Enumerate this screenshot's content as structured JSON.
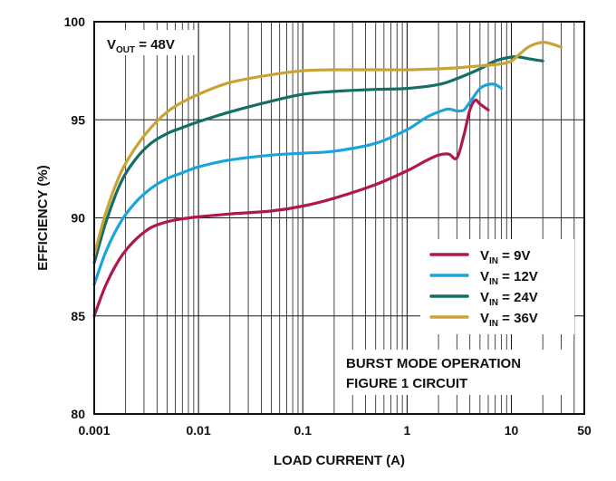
{
  "chart_data": {
    "type": "line",
    "title": "",
    "xlabel": "LOAD CURRENT (A)",
    "ylabel": "EFFICIENCY (%)",
    "x_scale": "log",
    "xlim": [
      0.001,
      50
    ],
    "ylim": [
      80,
      100
    ],
    "x_ticks": [
      0.001,
      0.01,
      0.1,
      1,
      10,
      50
    ],
    "x_tick_labels": [
      "0.001",
      "0.01",
      "0.1",
      "1",
      "10",
      "50"
    ],
    "y_ticks": [
      80,
      85,
      90,
      95,
      100
    ],
    "y_tick_labels": [
      "80",
      "85",
      "90",
      "95",
      "100"
    ],
    "grid": true,
    "legend_position": "bottom-right",
    "annotations": {
      "vout_main": "V",
      "vout_sub": "OUT",
      "vout_value": " = 48V",
      "burst_line1": "BURST MODE OPERATION",
      "burst_line2": "FIGURE 1 CIRCUIT"
    },
    "series": [
      {
        "name_main": "V",
        "name_sub": "IN",
        "name_value": " = 9V",
        "color": "#b0174f",
        "x": [
          0.001,
          0.0013,
          0.0018,
          0.0025,
          0.0035,
          0.005,
          0.007,
          0.01,
          0.02,
          0.05,
          0.1,
          0.2,
          0.5,
          1,
          1.5,
          2,
          2.5,
          3,
          3.5,
          4,
          4.5,
          5,
          6
        ],
        "y": [
          85.0,
          86.6,
          88.0,
          88.9,
          89.5,
          89.8,
          89.95,
          90.05,
          90.2,
          90.35,
          90.6,
          91.0,
          91.7,
          92.4,
          92.9,
          93.2,
          93.25,
          93.05,
          94.2,
          95.5,
          96.0,
          95.8,
          95.5
        ]
      },
      {
        "name_main": "V",
        "name_sub": "IN",
        "name_value": " = 12V",
        "color": "#1ba4dc",
        "x": [
          0.001,
          0.0013,
          0.0018,
          0.0025,
          0.0035,
          0.005,
          0.007,
          0.01,
          0.02,
          0.05,
          0.1,
          0.2,
          0.5,
          1,
          1.5,
          2,
          2.5,
          3,
          3.5,
          4,
          5,
          6,
          7,
          8
        ],
        "y": [
          86.6,
          88.3,
          89.8,
          90.8,
          91.5,
          92.0,
          92.3,
          92.6,
          92.95,
          93.2,
          93.3,
          93.4,
          93.8,
          94.5,
          95.1,
          95.4,
          95.55,
          95.45,
          95.5,
          95.9,
          96.6,
          96.8,
          96.8,
          96.6
        ]
      },
      {
        "name_main": "V",
        "name_sub": "IN",
        "name_value": " = 24V",
        "color": "#136f66",
        "x": [
          0.001,
          0.0013,
          0.0018,
          0.0025,
          0.0035,
          0.005,
          0.007,
          0.01,
          0.02,
          0.05,
          0.1,
          0.2,
          0.5,
          1,
          2,
          3,
          5,
          7,
          10,
          12,
          15,
          20
        ],
        "y": [
          87.7,
          89.8,
          91.8,
          93.0,
          93.8,
          94.3,
          94.6,
          94.9,
          95.4,
          95.95,
          96.3,
          96.45,
          96.55,
          96.6,
          96.8,
          97.1,
          97.6,
          98.0,
          98.2,
          98.2,
          98.1,
          98.0
        ]
      },
      {
        "name_main": "V",
        "name_sub": "IN",
        "name_value": " = 36V",
        "color": "#c9a335",
        "x": [
          0.001,
          0.0013,
          0.0018,
          0.0025,
          0.0035,
          0.005,
          0.007,
          0.01,
          0.02,
          0.05,
          0.1,
          0.2,
          0.5,
          1,
          2,
          3,
          5,
          8,
          10,
          12,
          15,
          20,
          25,
          30
        ],
        "y": [
          88.1,
          90.3,
          92.3,
          93.6,
          94.6,
          95.4,
          95.9,
          96.3,
          96.9,
          97.3,
          97.5,
          97.55,
          97.55,
          97.55,
          97.6,
          97.65,
          97.75,
          97.85,
          98.0,
          98.35,
          98.75,
          98.95,
          98.85,
          98.7
        ]
      }
    ]
  }
}
